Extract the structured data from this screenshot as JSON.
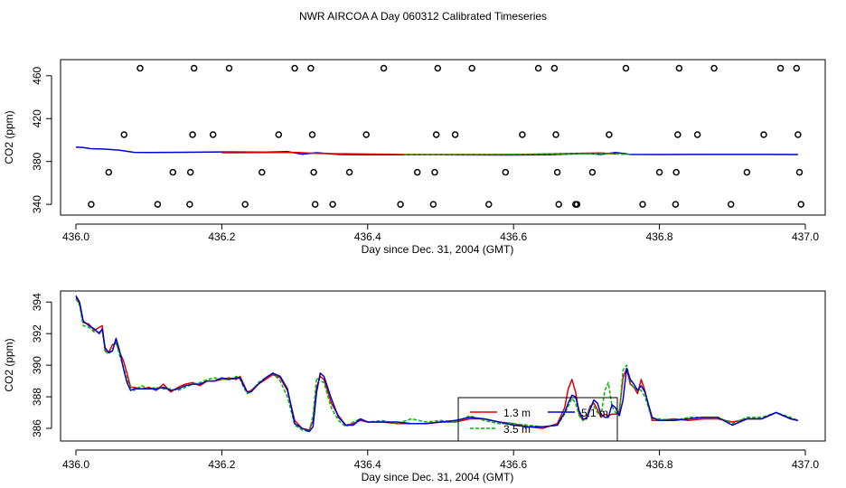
{
  "title": "NWR AIRCOA A  Day 060312  Calibrated Timeseries",
  "chart_data": [
    {
      "type": "scatter+line",
      "xlabel": "Day since Dec. 31, 2004 (GMT)",
      "ylabel": "CO2 (ppm)",
      "xlim": [
        436.0,
        437.0
      ],
      "ylim": [
        330,
        475
      ],
      "x_ticks": [
        436.0,
        436.2,
        436.4,
        436.6,
        436.8,
        437.0
      ],
      "x_tick_labels": [
        "436.0",
        "436.2",
        "436.4",
        "436.6",
        "436.8",
        "437.0"
      ],
      "y_ticks": [
        340,
        380,
        420,
        460
      ],
      "y_tick_labels": [
        "340",
        "380",
        "420",
        "460"
      ],
      "colors": {
        "red": "#dd0000",
        "green": "#00bb00",
        "blue": "#0000cc",
        "points": "#000000"
      },
      "points": [
        {
          "x": 436.021,
          "y": 340
        },
        {
          "x": 436.045,
          "y": 370
        },
        {
          "x": 436.066,
          "y": 405
        },
        {
          "x": 436.088,
          "y": 467
        },
        {
          "x": 436.112,
          "y": 340
        },
        {
          "x": 436.133,
          "y": 370
        },
        {
          "x": 436.156,
          "y": 340
        },
        {
          "x": 436.157,
          "y": 370
        },
        {
          "x": 436.16,
          "y": 405
        },
        {
          "x": 436.162,
          "y": 467
        },
        {
          "x": 436.188,
          "y": 405
        },
        {
          "x": 436.21,
          "y": 467
        },
        {
          "x": 436.232,
          "y": 340
        },
        {
          "x": 436.255,
          "y": 370
        },
        {
          "x": 436.278,
          "y": 405
        },
        {
          "x": 436.3,
          "y": 467
        },
        {
          "x": 436.322,
          "y": 467
        },
        {
          "x": 436.324,
          "y": 405
        },
        {
          "x": 436.326,
          "y": 370
        },
        {
          "x": 436.328,
          "y": 340
        },
        {
          "x": 436.352,
          "y": 340
        },
        {
          "x": 436.375,
          "y": 370
        },
        {
          "x": 436.398,
          "y": 405
        },
        {
          "x": 436.422,
          "y": 467
        },
        {
          "x": 436.445,
          "y": 340
        },
        {
          "x": 436.468,
          "y": 370
        },
        {
          "x": 436.49,
          "y": 340
        },
        {
          "x": 436.492,
          "y": 370
        },
        {
          "x": 436.494,
          "y": 405
        },
        {
          "x": 436.496,
          "y": 467
        },
        {
          "x": 436.52,
          "y": 405
        },
        {
          "x": 436.543,
          "y": 467
        },
        {
          "x": 436.566,
          "y": 340
        },
        {
          "x": 436.589,
          "y": 370
        },
        {
          "x": 436.612,
          "y": 405
        },
        {
          "x": 436.634,
          "y": 467
        },
        {
          "x": 436.656,
          "y": 467
        },
        {
          "x": 436.658,
          "y": 405
        },
        {
          "x": 436.66,
          "y": 370
        },
        {
          "x": 436.662,
          "y": 340
        },
        {
          "x": 436.685,
          "y": 340
        },
        {
          "x": 436.687,
          "y": 340
        },
        {
          "x": 436.708,
          "y": 370
        },
        {
          "x": 436.731,
          "y": 405
        },
        {
          "x": 436.754,
          "y": 467
        },
        {
          "x": 436.777,
          "y": 340
        },
        {
          "x": 436.8,
          "y": 370
        },
        {
          "x": 436.822,
          "y": 340
        },
        {
          "x": 436.823,
          "y": 370
        },
        {
          "x": 436.825,
          "y": 405
        },
        {
          "x": 436.827,
          "y": 467
        },
        {
          "x": 436.852,
          "y": 405
        },
        {
          "x": 436.875,
          "y": 467
        },
        {
          "x": 436.898,
          "y": 340
        },
        {
          "x": 436.92,
          "y": 370
        },
        {
          "x": 436.943,
          "y": 405
        },
        {
          "x": 436.966,
          "y": 467
        },
        {
          "x": 436.988,
          "y": 467
        },
        {
          "x": 436.99,
          "y": 405
        },
        {
          "x": 436.992,
          "y": 370
        },
        {
          "x": 436.994,
          "y": 340
        }
      ],
      "series": [
        {
          "name": "blue",
          "color": "#0000cc",
          "x": [
            436.0,
            436.01,
            436.02,
            436.04,
            436.06,
            436.08,
            436.1,
            436.15,
            436.2,
            436.26,
            436.29,
            436.31,
            436.33,
            436.36,
            436.4,
            436.5,
            436.6,
            436.65,
            436.7,
            436.72,
            436.74,
            436.76,
            436.8,
            436.85,
            436.9,
            436.95,
            436.99
          ],
          "y": [
            393.5,
            393,
            392,
            391.5,
            390.5,
            388.5,
            388.3,
            388.6,
            388.9,
            388.7,
            389.3,
            386.8,
            388.2,
            386.6,
            386.3,
            386.2,
            386.1,
            386.2,
            387.5,
            386.6,
            388.4,
            386.6,
            386.5,
            386.6,
            386.6,
            386.6,
            386.5
          ]
        },
        {
          "name": "red",
          "color": "#dd0000",
          "x": [
            436.2,
            436.3,
            436.33,
            436.45,
            436.6,
            436.72,
            436.74
          ],
          "y": [
            388.2,
            388.5,
            387.5,
            386.5,
            386.5,
            388.0,
            387.0
          ]
        },
        {
          "name": "green",
          "color": "#00bb00",
          "x": [
            436.45,
            436.5,
            436.55,
            436.73,
            436.76
          ],
          "y": [
            386.4,
            386.4,
            386.5,
            387.2,
            386.6
          ]
        }
      ]
    },
    {
      "type": "line",
      "xlabel": "Day since Dec. 31, 2004 (GMT)",
      "ylabel": "CO2 (ppm)",
      "xlim": [
        436.0,
        437.0
      ],
      "ylim": [
        385.2,
        394.7
      ],
      "x_ticks": [
        436.0,
        436.2,
        436.4,
        436.6,
        436.8,
        437.0
      ],
      "x_tick_labels": [
        "436.0",
        "436.2",
        "436.4",
        "436.6",
        "436.8",
        "437.0"
      ],
      "y_ticks": [
        386,
        388,
        390,
        392,
        394
      ],
      "y_tick_labels": [
        "386",
        "388",
        "390",
        "392",
        "394"
      ],
      "legend": {
        "position": "inside",
        "entries": [
          {
            "label": "1.3 m",
            "color": "#dd0000"
          },
          {
            "label": "5.1 m",
            "color": "#0000cc"
          },
          {
            "label": "3.5 m",
            "color": "#00bb00"
          }
        ]
      },
      "series": [
        {
          "name": "1.3 m",
          "color": "#dd0000",
          "x": [
            436.0,
            436.005,
            436.01,
            436.018,
            436.025,
            436.032,
            436.036,
            436.04,
            436.045,
            436.05,
            436.055,
            436.06,
            436.065,
            436.07,
            436.075,
            436.08,
            436.09,
            436.1,
            436.11,
            436.12,
            436.13,
            436.14,
            436.15,
            436.16,
            436.17,
            436.18,
            436.19,
            436.2,
            436.21,
            436.22,
            436.225,
            436.23,
            436.235,
            436.24,
            436.25,
            436.26,
            436.27,
            436.28,
            436.29,
            436.3,
            436.31,
            436.32,
            436.325,
            436.33,
            436.335,
            436.34,
            436.35,
            436.36,
            436.37,
            436.38,
            436.39,
            436.4,
            436.42,
            436.44,
            436.46,
            436.48,
            436.5,
            436.52,
            436.54,
            436.56,
            436.58,
            436.6,
            436.62,
            436.64,
            436.66,
            436.67,
            436.675,
            436.68,
            436.685,
            436.69,
            436.695,
            436.7,
            436.705,
            436.71,
            436.715,
            436.72,
            436.725,
            436.73,
            436.735,
            436.74,
            436.745,
            436.75,
            436.755,
            436.76,
            436.765,
            436.77,
            436.775,
            436.78,
            436.79,
            436.8,
            436.82,
            436.84,
            436.86,
            436.88,
            436.9,
            436.92,
            436.94,
            436.96,
            436.98,
            436.99
          ],
          "y": [
            394.3,
            393.9,
            392.7,
            392.6,
            392.2,
            392.4,
            392.5,
            390.9,
            390.8,
            391.3,
            391.4,
            390.8,
            390.3,
            389.5,
            388.6,
            388.6,
            388.5,
            388.6,
            388.4,
            388.8,
            388.3,
            388.6,
            388.8,
            388.9,
            388.7,
            389.0,
            389.0,
            389.1,
            389.2,
            389.1,
            389.3,
            388.8,
            388.3,
            388.4,
            388.8,
            389.1,
            389.4,
            389.2,
            388.4,
            386.5,
            386.0,
            385.9,
            386.5,
            388.6,
            389.3,
            389.1,
            387.6,
            386.8,
            386.2,
            386.3,
            386.5,
            386.4,
            386.4,
            386.3,
            386.3,
            386.3,
            386.4,
            386.4,
            386.6,
            386.6,
            386.4,
            386.3,
            386.1,
            386.0,
            386.3,
            387.3,
            388.5,
            389.1,
            388.3,
            386.9,
            386.5,
            386.7,
            387.4,
            387.6,
            387.2,
            386.7,
            386.9,
            386.8,
            386.9,
            386.9,
            387.1,
            389.2,
            389.8,
            388.8,
            388.6,
            388.2,
            389.1,
            388.4,
            386.5,
            386.5,
            386.6,
            386.5,
            386.6,
            386.6,
            386.4,
            386.6,
            386.6,
            387.0,
            386.6,
            386.5
          ]
        },
        {
          "name": "3.5 m",
          "color": "#00bb00",
          "x": [
            436.0,
            436.005,
            436.01,
            436.018,
            436.025,
            436.032,
            436.036,
            436.04,
            436.045,
            436.05,
            436.055,
            436.06,
            436.065,
            436.07,
            436.075,
            436.08,
            436.09,
            436.1,
            436.11,
            436.12,
            436.13,
            436.14,
            436.15,
            436.16,
            436.17,
            436.18,
            436.19,
            436.2,
            436.21,
            436.22,
            436.225,
            436.23,
            436.235,
            436.24,
            436.25,
            436.26,
            436.27,
            436.28,
            436.29,
            436.3,
            436.31,
            436.32,
            436.325,
            436.33,
            436.335,
            436.34,
            436.35,
            436.36,
            436.37,
            436.38,
            436.39,
            436.4,
            436.42,
            436.44,
            436.46,
            436.48,
            436.5,
            436.52,
            436.54,
            436.56,
            436.58,
            436.6,
            436.62,
            436.64,
            436.66,
            436.67,
            436.675,
            436.68,
            436.685,
            436.69,
            436.695,
            436.7,
            436.705,
            436.71,
            436.715,
            436.72,
            436.725,
            436.73,
            436.735,
            436.74,
            436.745,
            436.75,
            436.755,
            436.76,
            436.765,
            436.77,
            436.775,
            436.78,
            436.79,
            436.8,
            436.82,
            436.84,
            436.86,
            436.88,
            436.9,
            436.92,
            436.94,
            436.96,
            436.98,
            436.99
          ],
          "y": [
            394.2,
            393.8,
            392.5,
            392.4,
            392.1,
            392.1,
            392.2,
            390.9,
            390.7,
            391.0,
            391.5,
            390.6,
            389.9,
            389.1,
            388.5,
            388.4,
            388.7,
            388.5,
            388.6,
            388.5,
            388.5,
            388.4,
            388.6,
            388.8,
            388.9,
            389.1,
            389.2,
            389.1,
            389.1,
            389.3,
            389.1,
            388.6,
            388.2,
            388.3,
            388.9,
            389.2,
            389.5,
            389.0,
            388.0,
            386.2,
            385.9,
            385.8,
            386.8,
            389.2,
            389.0,
            388.9,
            387.3,
            386.5,
            386.1,
            386.4,
            386.6,
            386.4,
            386.5,
            386.3,
            386.6,
            386.4,
            386.5,
            386.4,
            386.8,
            386.5,
            386.3,
            386.3,
            386.2,
            386.1,
            386.2,
            386.9,
            387.4,
            387.9,
            387.6,
            386.8,
            386.5,
            386.6,
            387.3,
            387.4,
            387.0,
            386.8,
            388.4,
            388.9,
            387.4,
            387.0,
            386.9,
            389.7,
            390.0,
            389.0,
            388.5,
            388.5,
            388.4,
            388.0,
            386.6,
            386.6,
            386.5,
            386.7,
            386.7,
            386.7,
            386.3,
            386.7,
            386.7,
            387.0,
            386.7,
            386.5
          ]
        },
        {
          "name": "5.1 m",
          "color": "#0000cc",
          "x": [
            436.0,
            436.005,
            436.01,
            436.018,
            436.025,
            436.032,
            436.036,
            436.04,
            436.045,
            436.05,
            436.055,
            436.06,
            436.065,
            436.07,
            436.075,
            436.08,
            436.09,
            436.1,
            436.11,
            436.12,
            436.13,
            436.14,
            436.15,
            436.16,
            436.17,
            436.18,
            436.19,
            436.2,
            436.21,
            436.22,
            436.225,
            436.23,
            436.235,
            436.24,
            436.25,
            436.26,
            436.27,
            436.28,
            436.29,
            436.3,
            436.31,
            436.32,
            436.325,
            436.33,
            436.335,
            436.34,
            436.35,
            436.36,
            436.37,
            436.38,
            436.39,
            436.4,
            436.42,
            436.44,
            436.46,
            436.48,
            436.5,
            436.52,
            436.54,
            436.56,
            436.58,
            436.6,
            436.62,
            436.64,
            436.66,
            436.67,
            436.675,
            436.68,
            436.685,
            436.69,
            436.695,
            436.7,
            436.705,
            436.71,
            436.715,
            436.72,
            436.725,
            436.73,
            436.735,
            436.74,
            436.745,
            436.75,
            436.755,
            436.76,
            436.765,
            436.77,
            436.775,
            436.78,
            436.79,
            436.8,
            436.82,
            436.84,
            436.86,
            436.88,
            436.9,
            436.92,
            436.94,
            436.96,
            436.98,
            436.99
          ],
          "y": [
            394.4,
            394.0,
            392.8,
            392.5,
            392.3,
            392.0,
            392.3,
            391.1,
            390.8,
            390.9,
            391.7,
            390.9,
            389.8,
            388.9,
            388.4,
            388.5,
            388.5,
            388.5,
            388.5,
            388.6,
            388.4,
            388.5,
            388.7,
            388.8,
            388.8,
            389.0,
            389.0,
            389.2,
            389.1,
            389.2,
            389.2,
            388.7,
            388.3,
            388.3,
            388.8,
            389.2,
            389.5,
            389.3,
            388.5,
            386.3,
            386.0,
            385.8,
            386.1,
            388.3,
            389.5,
            389.3,
            387.9,
            386.7,
            386.2,
            386.2,
            386.6,
            386.4,
            386.4,
            386.4,
            386.3,
            386.3,
            386.4,
            386.5,
            386.7,
            386.6,
            386.4,
            386.2,
            386.1,
            386.1,
            386.2,
            387.0,
            387.6,
            388.1,
            388.0,
            387.1,
            386.6,
            386.6,
            387.2,
            387.8,
            387.6,
            386.9,
            386.7,
            386.7,
            387.5,
            387.3,
            386.8,
            387.8,
            389.8,
            389.1,
            388.8,
            388.4,
            388.7,
            388.3,
            386.7,
            386.5,
            386.5,
            386.6,
            386.7,
            386.7,
            386.2,
            386.6,
            386.6,
            387.0,
            386.6,
            386.5
          ]
        }
      ]
    }
  ]
}
